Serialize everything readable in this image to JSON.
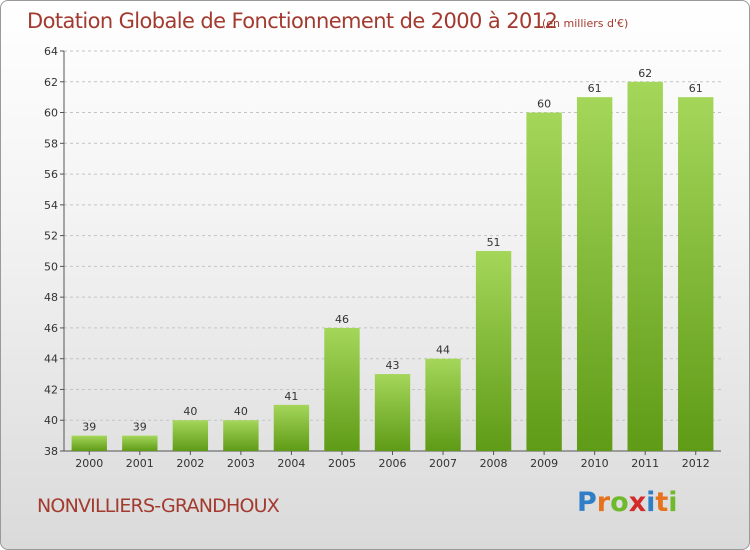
{
  "title": "Dotation Globale de Fonctionnement de 2000 à 2012",
  "subtitle": "(en milliers d'€)",
  "commune": "NONVILLIERS-GRANDHOUX",
  "logo": {
    "text": "Proxiti",
    "letter_colors": [
      "#2f7ec7",
      "#e6721d",
      "#6fb92c",
      "#d32a2a",
      "#2f7ec7",
      "#e6721d",
      "#6fb92c"
    ]
  },
  "colors": {
    "bar_top": "#a4d65a",
    "bar_bottom": "#5f9b16",
    "title": "#a33a2f",
    "grid": "#c4c4c4"
  },
  "chart_data": {
    "type": "bar",
    "title": "Dotation Globale de Fonctionnement de 2000 à 2012",
    "subtitle": "(en milliers d'€)",
    "categories": [
      "2000",
      "2001",
      "2002",
      "2003",
      "2004",
      "2005",
      "2006",
      "2007",
      "2008",
      "2009",
      "2010",
      "2011",
      "2012"
    ],
    "values": [
      39,
      39,
      40,
      40,
      41,
      46,
      43,
      44,
      51,
      60,
      61,
      62,
      61
    ],
    "ylim": [
      38,
      64
    ],
    "yticks": [
      38,
      40,
      42,
      44,
      46,
      48,
      50,
      52,
      54,
      56,
      58,
      60,
      62,
      64
    ],
    "grid": true,
    "grid_style": "dashed-horizontal",
    "data_labels": true
  }
}
